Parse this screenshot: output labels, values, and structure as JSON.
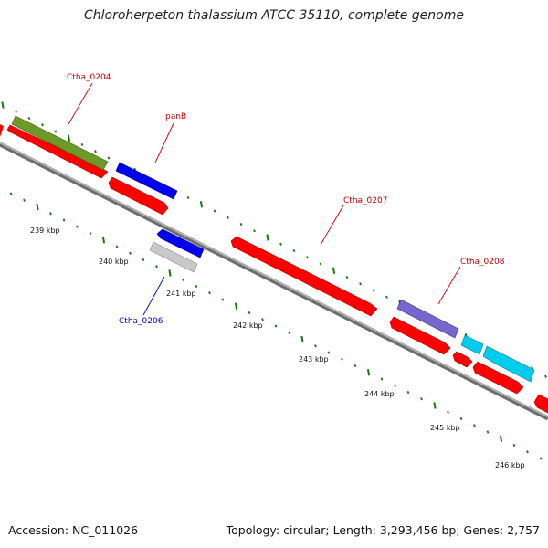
{
  "title": "Chloroherpeton thalassium ATCC 35110, complete genome",
  "footer": {
    "accession": "Accession: NC_011026",
    "topology": "Topology: circular; Length: 3,293,456 bp; Genes: 2,757"
  },
  "colors": {
    "forward_cds": "#ff0000",
    "rna_gene": "#0000ff",
    "pseudo": "#c0c0c0",
    "label_forward": "#cc0000",
    "label_reverse": "#0000cc",
    "tick": "#117711"
  },
  "scale_labels": [
    "239 kbp",
    "240 kbp",
    "241 kbp",
    "242 kbp",
    "243 kbp",
    "244 kbp",
    "245 kbp",
    "246 kbp"
  ],
  "gene_labels": {
    "ctha_0204": "Ctha_0204",
    "panb": "panB",
    "ctha_0207": "Ctha_0207",
    "ctha_0208": "Ctha_0208",
    "ctha_0206": "Ctha_0206"
  }
}
